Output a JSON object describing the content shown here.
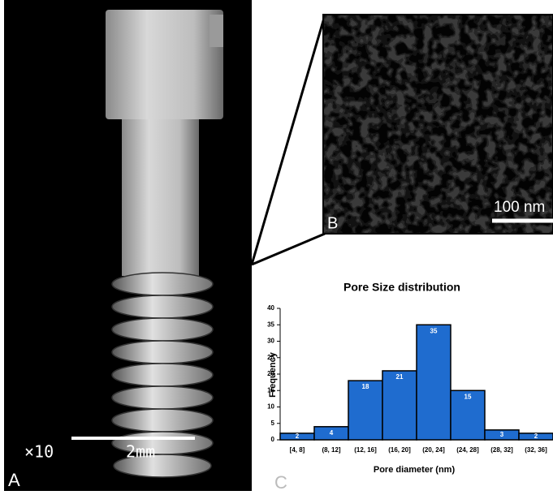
{
  "panels": {
    "a_label": "A",
    "a_magnification": "×10",
    "a_scale": "2mm",
    "b_label": "B",
    "b_scale": "100 nm",
    "c_label": "C"
  },
  "chart_data": {
    "type": "bar",
    "title": "Pore Size distribution",
    "x_label": "Pore diameter (nm)",
    "y_label": "Frequency",
    "categories": [
      "[4, 8]",
      "(8, 12]",
      "(12, 16]",
      "(16, 20]",
      "(20, 24]",
      "(24, 28]",
      "(28, 32]",
      "(32, 36]"
    ],
    "values": [
      2,
      4,
      18,
      21,
      35,
      15,
      3,
      2
    ],
    "color": "#1f6ccf",
    "ylim": [
      0,
      40
    ],
    "yticks": [
      0,
      5,
      10,
      15,
      20,
      25,
      30,
      35,
      40
    ],
    "grid": false
  }
}
